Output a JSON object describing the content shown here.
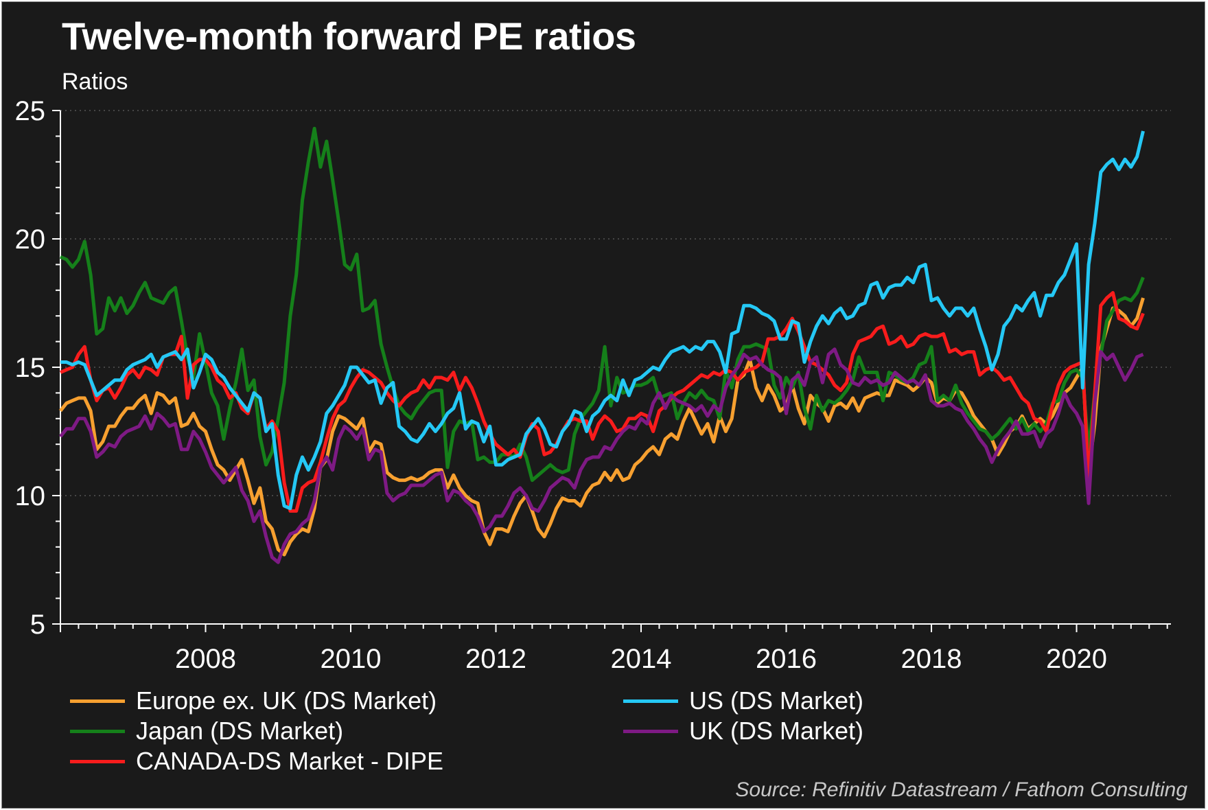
{
  "chart_data": {
    "type": "line",
    "title": "Twelve-month forward PE ratios",
    "subtitle": "Ratios",
    "xlabel": "",
    "ylabel": "Ratios",
    "ylim": [
      5,
      25
    ],
    "yticks": [
      5,
      10,
      15,
      20,
      25
    ],
    "xlim": [
      2006.0,
      2021.3
    ],
    "xticks": [
      2008,
      2010,
      2012,
      2014,
      2016,
      2018,
      2020
    ],
    "xtick_labels": [
      "2008",
      "2010",
      "2012",
      "2014",
      "2016",
      "2018",
      "2020"
    ],
    "x_start": "2006-01",
    "frequency": "monthly",
    "grid": "horizontal-dotted",
    "legend_position": "bottom",
    "source": "Source: Refinitiv Datastream / Fathom Consulting",
    "series": [
      {
        "name": "Europe ex. UK (DS Market)",
        "color": "#f7a030",
        "values": [
          13.3,
          13.6,
          13.7,
          13.8,
          13.8,
          13.3,
          11.8,
          12.1,
          12.7,
          12.7,
          13.1,
          13.4,
          13.4,
          13.7,
          13.9,
          13.2,
          14.0,
          13.9,
          13.6,
          13.8,
          12.7,
          12.8,
          13.2,
          12.7,
          12.5,
          11.8,
          11.2,
          11.0,
          10.6,
          11.0,
          11.4,
          10.6,
          9.7,
          10.3,
          9.0,
          8.7,
          7.9,
          7.7,
          8.2,
          8.5,
          8.7,
          8.6,
          9.5,
          11.1,
          11.4,
          12.5,
          13.1,
          13.0,
          12.8,
          12.6,
          13.0,
          11.7,
          12.1,
          12.0,
          10.9,
          10.7,
          10.6,
          10.6,
          10.7,
          10.6,
          10.7,
          10.9,
          11.0,
          11.0,
          10.3,
          10.8,
          10.3,
          10.0,
          9.8,
          9.7,
          8.6,
          8.1,
          8.7,
          8.7,
          8.6,
          9.2,
          9.7,
          10.0,
          9.4,
          8.7,
          8.4,
          8.9,
          9.5,
          9.9,
          9.8,
          9.8,
          9.6,
          10.1,
          10.4,
          10.5,
          10.9,
          10.6,
          11.0,
          10.6,
          10.7,
          11.2,
          11.4,
          11.7,
          11.9,
          11.6,
          12.2,
          12.4,
          12.2,
          12.9,
          13.4,
          12.9,
          12.4,
          12.8,
          12.1,
          13.1,
          12.5,
          13.0,
          14.5,
          14.7,
          15.3,
          14.2,
          13.7,
          14.3,
          13.9,
          13.3,
          13.5,
          14.3,
          13.4,
          12.8,
          13.9,
          13.6,
          13.4,
          12.9,
          13.5,
          13.6,
          13.4,
          13.8,
          13.3,
          13.8,
          13.9,
          14.0,
          13.9,
          13.9,
          14.5,
          14.4,
          14.3,
          14.1,
          14.3,
          14.6,
          14.4,
          13.6,
          13.8,
          13.7,
          14.1,
          14.0,
          13.6,
          13.1,
          12.8,
          12.5,
          12.2,
          11.6,
          12.0,
          12.5,
          12.7,
          13.1,
          12.6,
          12.8,
          13.0,
          12.8,
          13.1,
          13.6,
          14.0,
          14.2,
          14.6,
          15.0,
          10.9,
          12.8,
          15.7,
          16.5,
          17.3,
          17.2,
          17.0,
          16.6,
          16.9,
          17.7
        ]
      },
      {
        "name": "Japan (DS Market)",
        "color": "#15801a",
        "values": [
          19.3,
          19.2,
          18.9,
          19.2,
          19.9,
          18.6,
          16.3,
          16.5,
          17.7,
          17.2,
          17.7,
          17.1,
          17.4,
          17.9,
          18.3,
          17.7,
          17.6,
          17.5,
          17.9,
          18.1,
          16.8,
          15.4,
          14.6,
          16.3,
          15.2,
          14.0,
          13.5,
          12.2,
          13.4,
          14.4,
          15.7,
          14.1,
          14.5,
          12.3,
          11.2,
          11.7,
          13.0,
          14.4,
          17.0,
          18.6,
          21.5,
          23.0,
          24.3,
          22.8,
          23.8,
          22.3,
          20.7,
          19.0,
          18.8,
          19.4,
          17.2,
          17.3,
          17.6,
          15.9,
          15.0,
          14.2,
          13.5,
          13.2,
          13.0,
          13.4,
          13.7,
          14.0,
          14.1,
          14.1,
          11.1,
          12.5,
          12.9,
          12.8,
          12.9,
          11.4,
          11.5,
          11.3,
          11.3,
          11.6,
          11.6,
          11.5,
          12.0,
          11.5,
          10.6,
          10.8,
          11.0,
          11.2,
          11.0,
          10.9,
          11.0,
          12.4,
          13.0,
          13.3,
          13.6,
          14.1,
          15.8,
          13.5,
          14.6,
          14.0,
          14.1,
          14.3,
          14.3,
          14.4,
          14.6,
          13.8,
          13.9,
          14.0,
          13.0,
          13.6,
          14.0,
          13.8,
          14.1,
          13.8,
          13.7,
          13.0,
          14.9,
          14.2,
          15.3,
          15.8,
          15.8,
          15.9,
          15.8,
          15.7,
          14.3,
          13.8,
          14.6,
          14.2,
          14.8,
          13.4,
          12.6,
          13.9,
          13.3,
          13.7,
          13.6,
          13.8,
          14.1,
          14.5,
          15.4,
          14.8,
          14.8,
          14.8,
          13.7,
          14.8,
          14.7,
          14.5,
          14.4,
          14.6,
          15.1,
          15.2,
          15.8,
          13.7,
          13.9,
          13.7,
          14.3,
          13.6,
          13.2,
          12.9,
          12.6,
          12.5,
          12.2,
          12.4,
          12.7,
          13.0,
          12.6,
          13.0,
          12.5,
          12.8,
          12.5,
          12.8,
          13.6,
          13.7,
          14.4,
          14.8,
          14.9,
          14.6,
          11.8,
          14.0,
          15.5,
          16.8,
          17.2,
          17.6,
          17.7,
          17.6,
          17.9,
          18.5
        ]
      },
      {
        "name": "CANADA-DS Market - DIPE",
        "color": "#f81c1c",
        "values": [
          14.8,
          14.9,
          15.0,
          15.5,
          15.8,
          14.5,
          13.7,
          14.1,
          14.2,
          13.8,
          14.2,
          14.7,
          14.9,
          14.6,
          15.0,
          14.9,
          14.7,
          15.4,
          15.5,
          15.5,
          16.2,
          13.8,
          15.1,
          15.3,
          15.3,
          15.0,
          14.5,
          14.3,
          13.8,
          14.0,
          13.4,
          13.2,
          14.0,
          13.8,
          12.6,
          12.9,
          12.5,
          10.5,
          9.4,
          9.4,
          10.3,
          10.5,
          10.6,
          11.3,
          12.2,
          13.0,
          13.5,
          13.7,
          14.2,
          14.6,
          14.9,
          14.8,
          14.6,
          14.4,
          14.0,
          13.7,
          13.5,
          13.8,
          14.0,
          14.1,
          14.5,
          14.2,
          14.6,
          14.6,
          14.5,
          14.8,
          14.1,
          14.6,
          14.2,
          13.6,
          12.9,
          12.4,
          12.0,
          11.8,
          11.6,
          11.8,
          11.5,
          12.3,
          12.8,
          12.6,
          11.6,
          11.7,
          12.0,
          12.5,
          12.9,
          13.0,
          12.9,
          12.9,
          12.2,
          12.8,
          13.1,
          12.9,
          12.5,
          12.6,
          13.0,
          13.0,
          13.2,
          13.1,
          12.5,
          13.3,
          13.5,
          13.8,
          14.0,
          14.1,
          14.3,
          14.5,
          14.7,
          14.6,
          14.8,
          14.7,
          14.9,
          14.8,
          14.5,
          14.8,
          14.9,
          15.0,
          15.2,
          16.1,
          16.1,
          16.2,
          16.5,
          16.9,
          16.4,
          15.8,
          15.2,
          15.1,
          14.9,
          14.7,
          14.3,
          14.1,
          14.4,
          15.5,
          16.0,
          16.1,
          16.2,
          16.5,
          16.6,
          15.9,
          16.0,
          16.2,
          15.8,
          15.9,
          16.2,
          16.3,
          16.2,
          16.2,
          16.3,
          15.6,
          15.7,
          15.5,
          15.6,
          15.6,
          14.7,
          14.9,
          15.0,
          14.8,
          14.5,
          14.6,
          14.2,
          13.8,
          13.6,
          13.0,
          12.9,
          12.5,
          13.5,
          14.3,
          14.8,
          15.0,
          15.1,
          15.2,
          10.6,
          14.0,
          17.4,
          17.7,
          17.9,
          16.9,
          16.8,
          16.6,
          16.5,
          17.1
        ]
      },
      {
        "name": "US (DS Market)",
        "color": "#25c8f5",
        "values": [
          15.2,
          15.2,
          15.1,
          15.2,
          15.1,
          14.5,
          13.9,
          14.1,
          14.3,
          14.5,
          14.5,
          14.9,
          15.1,
          15.2,
          15.3,
          15.5,
          15.0,
          15.4,
          15.5,
          15.6,
          15.3,
          15.7,
          14.2,
          14.8,
          15.5,
          15.3,
          14.8,
          14.6,
          14.2,
          13.9,
          13.6,
          13.3,
          14.0,
          13.8,
          12.5,
          12.8,
          10.8,
          9.6,
          9.5,
          10.8,
          11.5,
          11.0,
          11.5,
          12.1,
          13.2,
          13.5,
          13.9,
          14.3,
          15.0,
          15.0,
          14.7,
          14.4,
          14.5,
          13.6,
          14.2,
          14.4,
          12.7,
          12.5,
          12.2,
          12.1,
          12.4,
          12.8,
          12.5,
          12.8,
          13.2,
          13.4,
          14.0,
          12.6,
          12.9,
          12.8,
          12.1,
          12.7,
          11.2,
          11.2,
          11.4,
          11.5,
          11.6,
          12.4,
          12.7,
          13.0,
          12.6,
          12.0,
          11.9,
          12.5,
          12.8,
          13.3,
          13.2,
          12.5,
          13.1,
          13.3,
          13.7,
          13.9,
          13.7,
          14.5,
          13.9,
          14.5,
          14.6,
          14.8,
          15.0,
          14.9,
          15.3,
          15.6,
          15.7,
          15.8,
          15.6,
          15.8,
          15.7,
          16.0,
          16.0,
          15.6,
          14.8,
          16.3,
          16.4,
          17.4,
          17.4,
          17.3,
          17.1,
          17.0,
          16.8,
          16.1,
          16.1,
          16.8,
          16.7,
          15.2,
          16.0,
          16.6,
          17.0,
          16.7,
          17.1,
          17.3,
          16.9,
          17.0,
          17.4,
          17.5,
          18.2,
          18.3,
          17.7,
          18.1,
          18.2,
          18.2,
          18.5,
          18.3,
          18.9,
          19.0,
          17.6,
          17.7,
          17.3,
          17.0,
          17.3,
          17.3,
          17.0,
          17.3,
          16.5,
          15.8,
          14.9,
          15.5,
          16.6,
          16.9,
          17.4,
          17.2,
          17.6,
          17.9,
          17.0,
          17.8,
          17.8,
          18.3,
          18.6,
          19.2,
          19.8,
          14.2,
          19.0,
          20.6,
          22.6,
          22.9,
          23.1,
          22.7,
          23.1,
          22.8,
          23.2,
          24.2
        ]
      },
      {
        "name": "UK (DS Market)",
        "color": "#7e1a84",
        "values": [
          12.3,
          12.6,
          12.6,
          13.0,
          13.0,
          12.5,
          11.5,
          11.7,
          12.0,
          11.9,
          12.3,
          12.5,
          12.6,
          12.7,
          13.1,
          12.6,
          13.2,
          13.0,
          12.7,
          12.8,
          11.8,
          11.8,
          12.5,
          12.2,
          11.7,
          11.1,
          10.8,
          10.5,
          10.8,
          11.1,
          10.2,
          9.8,
          9.0,
          9.4,
          8.4,
          7.6,
          7.4,
          8.1,
          8.5,
          8.6,
          8.9,
          9.1,
          9.8,
          11.1,
          11.5,
          11.0,
          12.2,
          12.7,
          12.5,
          12.2,
          12.6,
          11.4,
          11.8,
          11.7,
          10.1,
          9.8,
          10.0,
          10.1,
          10.4,
          10.4,
          10.4,
          10.6,
          10.8,
          10.9,
          9.8,
          10.2,
          10.1,
          9.8,
          9.6,
          9.2,
          8.6,
          8.8,
          9.2,
          9.2,
          9.6,
          10.1,
          10.3,
          10.0,
          9.5,
          9.4,
          9.8,
          10.3,
          10.5,
          10.7,
          10.6,
          10.3,
          11.0,
          11.4,
          11.5,
          11.5,
          11.9,
          11.8,
          12.2,
          12.5,
          12.7,
          12.6,
          13.0,
          12.8,
          13.6,
          14.0,
          13.4,
          13.9,
          13.7,
          13.6,
          13.5,
          13.3,
          13.5,
          13.1,
          13.5,
          13.3,
          14.2,
          14.7,
          15.0,
          15.5,
          15.3,
          15.4,
          15.1,
          14.9,
          14.8,
          14.6,
          13.2,
          14.5,
          14.7,
          14.3,
          15.2,
          15.4,
          14.4,
          15.5,
          15.7,
          15.1,
          14.9,
          14.4,
          14.3,
          14.6,
          14.4,
          14.5,
          14.3,
          14.4,
          14.8,
          14.6,
          14.4,
          14.5,
          14.3,
          14.7,
          13.7,
          13.5,
          13.5,
          13.6,
          13.4,
          13.3,
          12.9,
          12.6,
          12.2,
          11.9,
          11.3,
          11.8,
          12.2,
          12.5,
          12.9,
          12.4,
          12.4,
          12.5,
          11.9,
          12.4,
          12.6,
          13.2,
          14.0,
          13.5,
          13.2,
          12.7,
          9.7,
          13.6,
          15.6,
          15.3,
          15.5,
          15.0,
          14.5,
          14.9,
          15.4,
          15.5
        ]
      }
    ],
    "legend": [
      {
        "label": "Europe ex. UK (DS Market)",
        "color": "#f7a030"
      },
      {
        "label": "Japan (DS Market)",
        "color": "#15801a"
      },
      {
        "label": "CANADA-DS Market - DIPE",
        "color": "#f81c1c"
      },
      {
        "label": "US (DS Market)",
        "color": "#25c8f5"
      },
      {
        "label": "UK (DS Market)",
        "color": "#7e1a84"
      }
    ]
  }
}
